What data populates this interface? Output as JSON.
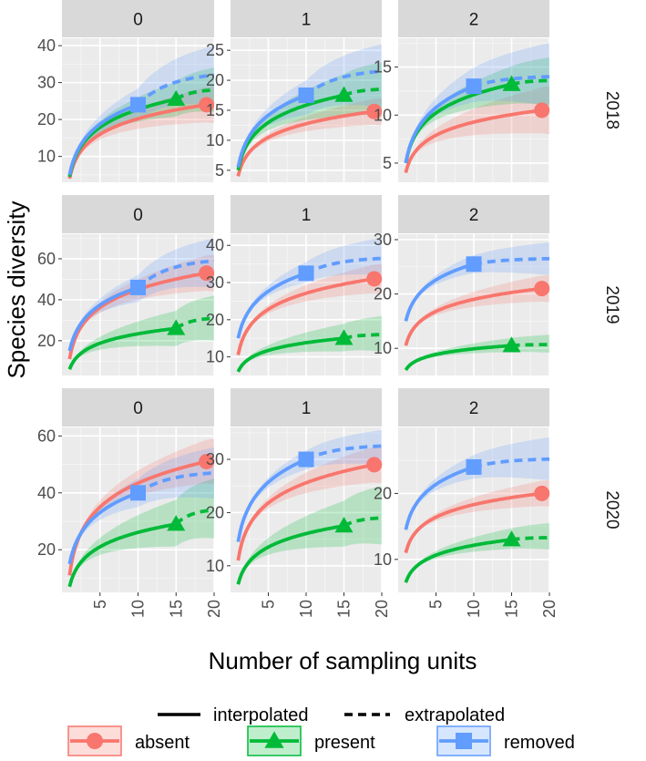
{
  "chart_data": {
    "type": "line",
    "title": "",
    "xlabel": "Number of sampling units",
    "ylabel": "Species diversity",
    "xlim": [
      0,
      20
    ],
    "x_ticks": [
      5,
      10,
      15,
      20
    ],
    "columns": [
      "0",
      "1",
      "2"
    ],
    "rows": [
      "2018",
      "2019",
      "2020"
    ],
    "line_type_legend": [
      "interpolated",
      "extrapolated"
    ],
    "series_legend": [
      {
        "name": "absent",
        "color": "#F8766D",
        "marker": "circle"
      },
      {
        "name": "present",
        "color": "#00BA38",
        "marker": "triangle"
      },
      {
        "name": "removed",
        "color": "#619CFF",
        "marker": "square"
      }
    ],
    "panels": [
      {
        "row": "2018",
        "col": "0",
        "ylim": [
          3,
          42
        ],
        "yticks": [
          10,
          20,
          30,
          40
        ],
        "series": [
          {
            "name": "absent",
            "n_obs": 19,
            "start": 4,
            "obs": 24,
            "end": 24,
            "lo_end": 19,
            "hi_end": 29
          },
          {
            "name": "present",
            "n_obs": 15,
            "start": 4.5,
            "obs": 25.5,
            "end": 28,
            "lo_end": 22,
            "hi_end": 34
          },
          {
            "name": "removed",
            "n_obs": 10,
            "start": 5,
            "obs": 24,
            "end": 32,
            "lo_end": 24,
            "hi_end": 40
          }
        ]
      },
      {
        "row": "2018",
        "col": "1",
        "ylim": [
          3,
          27
        ],
        "yticks": [
          5,
          10,
          15,
          20,
          25
        ],
        "series": [
          {
            "name": "absent",
            "n_obs": 19,
            "start": 4,
            "obs": 14.8,
            "end": 14.8,
            "lo_end": 12.5,
            "hi_end": 17
          },
          {
            "name": "present",
            "n_obs": 15,
            "start": 5,
            "obs": 17.5,
            "end": 18.5,
            "lo_end": 14,
            "hi_end": 23
          },
          {
            "name": "removed",
            "n_obs": 10,
            "start": 5.5,
            "obs": 17.5,
            "end": 21.5,
            "lo_end": 15.5,
            "hi_end": 26
          }
        ]
      },
      {
        "row": "2018",
        "col": "2",
        "ylim": [
          3,
          18
        ],
        "yticks": [
          5,
          10,
          15
        ],
        "series": [
          {
            "name": "absent",
            "n_obs": 19,
            "start": 4,
            "obs": 10.5,
            "end": 10.5,
            "lo_end": 8,
            "hi_end": 13
          },
          {
            "name": "present",
            "n_obs": 15,
            "start": 5,
            "obs": 13.2,
            "end": 13.6,
            "lo_end": 11,
            "hi_end": 16
          },
          {
            "name": "removed",
            "n_obs": 10,
            "start": 5,
            "obs": 13,
            "end": 14,
            "lo_end": 11,
            "hi_end": 17.5
          }
        ]
      },
      {
        "row": "2019",
        "col": "0",
        "ylim": [
          3,
          72
        ],
        "yticks": [
          20,
          40,
          60
        ],
        "series": [
          {
            "name": "absent",
            "n_obs": 19,
            "start": 11,
            "obs": 53,
            "end": 53,
            "lo_end": 44,
            "hi_end": 62
          },
          {
            "name": "present",
            "n_obs": 15,
            "start": 6,
            "obs": 26,
            "end": 31,
            "lo_end": 20,
            "hi_end": 42
          },
          {
            "name": "removed",
            "n_obs": 10,
            "start": 15,
            "obs": 46,
            "end": 59,
            "lo_end": 46,
            "hi_end": 70
          }
        ]
      },
      {
        "row": "2019",
        "col": "1",
        "ylim": [
          5,
          43
        ],
        "yticks": [
          10,
          20,
          30,
          40
        ],
        "series": [
          {
            "name": "absent",
            "n_obs": 19,
            "start": 10.5,
            "obs": 31,
            "end": 31,
            "lo_end": 27,
            "hi_end": 35
          },
          {
            "name": "present",
            "n_obs": 15,
            "start": 6,
            "obs": 15,
            "end": 16,
            "lo_end": 11.5,
            "hi_end": 21
          },
          {
            "name": "removed",
            "n_obs": 10,
            "start": 15,
            "obs": 32.5,
            "end": 36.5,
            "lo_end": 32,
            "hi_end": 42
          }
        ]
      },
      {
        "row": "2019",
        "col": "2",
        "ylim": [
          5,
          31
        ],
        "yticks": [
          10,
          20,
          30
        ],
        "series": [
          {
            "name": "absent",
            "n_obs": 19,
            "start": 10.5,
            "obs": 21,
            "end": 21,
            "lo_end": 18.5,
            "hi_end": 23.5
          },
          {
            "name": "present",
            "n_obs": 15,
            "start": 6,
            "obs": 10.5,
            "end": 10.7,
            "lo_end": 9.2,
            "hi_end": 12.5
          },
          {
            "name": "removed",
            "n_obs": 10,
            "start": 15,
            "obs": 25.5,
            "end": 26.5,
            "lo_end": 23.5,
            "hi_end": 29.5
          }
        ]
      },
      {
        "row": "2020",
        "col": "0",
        "ylim": [
          5,
          63
        ],
        "yticks": [
          20,
          40,
          60
        ],
        "series": [
          {
            "name": "absent",
            "n_obs": 19,
            "start": 11,
            "obs": 51,
            "end": 51,
            "lo_end": 43,
            "hi_end": 59
          },
          {
            "name": "present",
            "n_obs": 15,
            "start": 7,
            "obs": 29,
            "end": 34,
            "lo_end": 24,
            "hi_end": 45
          },
          {
            "name": "removed",
            "n_obs": 10,
            "start": 15,
            "obs": 40,
            "end": 47,
            "lo_end": 38,
            "hi_end": 56
          }
        ]
      },
      {
        "row": "2020",
        "col": "1",
        "ylim": [
          5,
          36
        ],
        "yticks": [
          10,
          20,
          30
        ],
        "series": [
          {
            "name": "absent",
            "n_obs": 19,
            "start": 11,
            "obs": 29,
            "end": 29,
            "lo_end": 25.5,
            "hi_end": 32.5
          },
          {
            "name": "present",
            "n_obs": 15,
            "start": 6.5,
            "obs": 17.5,
            "end": 19,
            "lo_end": 14,
            "hi_end": 25
          },
          {
            "name": "removed",
            "n_obs": 10,
            "start": 14.5,
            "obs": 30,
            "end": 32.5,
            "lo_end": 29,
            "hi_end": 35.5
          }
        ]
      },
      {
        "row": "2020",
        "col": "2",
        "ylim": [
          5,
          30
        ],
        "yticks": [
          10,
          20
        ],
        "series": [
          {
            "name": "absent",
            "n_obs": 19,
            "start": 11,
            "obs": 20,
            "end": 20,
            "lo_end": 18,
            "hi_end": 22
          },
          {
            "name": "present",
            "n_obs": 15,
            "start": 6.5,
            "obs": 13,
            "end": 13.3,
            "lo_end": 11.5,
            "hi_end": 15.5
          },
          {
            "name": "removed",
            "n_obs": 10,
            "start": 14.5,
            "obs": 24,
            "end": 25.2,
            "lo_end": 22,
            "hi_end": 28.5
          }
        ]
      }
    ]
  }
}
